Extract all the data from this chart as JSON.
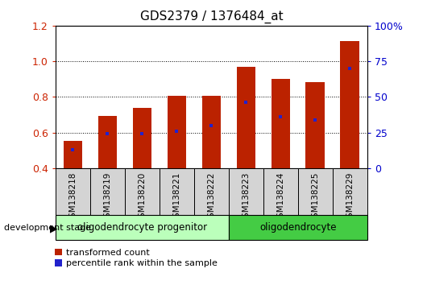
{
  "title": "GDS2379 / 1376484_at",
  "samples": [
    "GSM138218",
    "GSM138219",
    "GSM138220",
    "GSM138221",
    "GSM138222",
    "GSM138223",
    "GSM138224",
    "GSM138225",
    "GSM138229"
  ],
  "transformed_counts": [
    0.555,
    0.695,
    0.74,
    0.805,
    0.808,
    0.968,
    0.9,
    0.885,
    1.115
  ],
  "percentile_ranks_pct": [
    13,
    24,
    24,
    26,
    30,
    46,
    36,
    34,
    70
  ],
  "ylim_left": [
    0.4,
    1.2
  ],
  "ylim_right": [
    0,
    100
  ],
  "yticks_left": [
    0.4,
    0.6,
    0.8,
    1.0,
    1.2
  ],
  "yticks_right": [
    0,
    25,
    50,
    75,
    100
  ],
  "bar_color": "#bb2200",
  "dot_color": "#2222cc",
  "bar_width": 0.55,
  "groups": [
    {
      "label": "oligodendrocyte progenitor",
      "start": 0,
      "end": 5,
      "color": "#bbffbb"
    },
    {
      "label": "oligodendrocyte",
      "start": 5,
      "end": 9,
      "color": "#44cc44"
    }
  ],
  "legend_items": [
    {
      "color": "#bb2200",
      "label": "transformed count"
    },
    {
      "color": "#2222cc",
      "label": "percentile rank within the sample"
    }
  ],
  "development_stage_label": "development stage",
  "title_fontsize": 11,
  "tick_fontsize": 7.5,
  "axis_color_left": "#cc2200",
  "axis_color_right": "#0000cc"
}
